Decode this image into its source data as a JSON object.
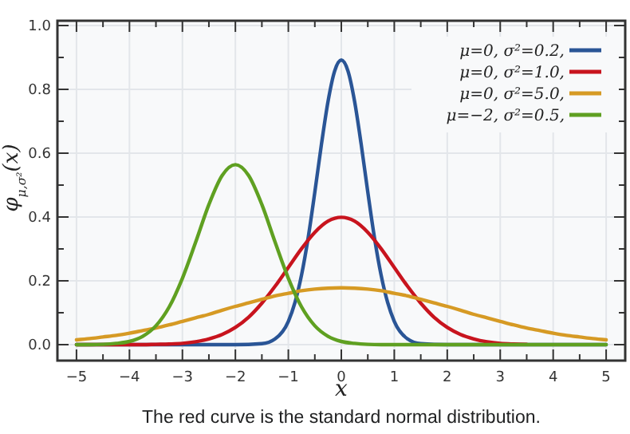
{
  "chart_data": {
    "type": "line",
    "xlabel": "x",
    "ylabel": "φ$_{μ,σ²}$(x)",
    "annotations": [
      "The red curve is the standard normal distribution."
    ],
    "x": [
      -5,
      -4.75,
      -4.5,
      -4.25,
      -4,
      -3.75,
      -3.5,
      -3.25,
      -3,
      -2.75,
      -2.5,
      -2.25,
      -2,
      -1.75,
      -1.5,
      -1.25,
      -1,
      -0.75,
      -0.5,
      -0.25,
      0,
      0.25,
      0.5,
      0.75,
      1,
      1.25,
      1.5,
      1.75,
      2,
      2.25,
      2.5,
      2.75,
      3,
      3.25,
      3.5,
      3.75,
      4,
      4.25,
      4.5,
      4.75,
      5
    ],
    "series": [
      {
        "name": "μ=0, σ²=0.2,",
        "color": "#2a5596",
        "x": [
          -5,
          -2,
          -1.5,
          -1.25,
          -1,
          -0.875,
          -0.75,
          -0.625,
          -0.5,
          -0.375,
          -0.25,
          -0.125,
          0,
          0.125,
          0.25,
          0.375,
          0.5,
          0.625,
          0.75,
          0.875,
          1,
          1.25,
          1.5,
          2,
          5
        ],
        "values": [
          0,
          0,
          0.003,
          0.018,
          0.073,
          0.132,
          0.219,
          0.336,
          0.478,
          0.628,
          0.763,
          0.858,
          0.892,
          0.858,
          0.763,
          0.628,
          0.478,
          0.336,
          0.219,
          0.132,
          0.073,
          0.018,
          0.003,
          0,
          0
        ]
      },
      {
        "name": "μ=0, σ²=1.0,",
        "color": "#c8141e",
        "values": [
          0,
          0,
          0,
          0,
          0,
          0,
          0.001,
          0.002,
          0.004,
          0.009,
          0.018,
          0.032,
          0.054,
          0.086,
          0.13,
          0.183,
          0.242,
          0.301,
          0.352,
          0.387,
          0.399,
          0.387,
          0.352,
          0.301,
          0.242,
          0.183,
          0.13,
          0.086,
          0.054,
          0.032,
          0.018,
          0.009,
          0.004,
          0.002,
          0.001,
          null,
          null,
          null,
          null,
          null,
          null
        ]
      },
      {
        "name": "μ=0, σ²=5.0,",
        "color": "#d69a24",
        "values": [
          0.015,
          0.019,
          0.024,
          0.029,
          0.036,
          0.044,
          0.052,
          0.062,
          0.073,
          0.084,
          0.095,
          0.108,
          0.12,
          0.131,
          0.142,
          0.153,
          0.161,
          0.169,
          0.174,
          0.177,
          0.178,
          0.177,
          0.174,
          0.169,
          0.161,
          0.153,
          0.142,
          0.131,
          0.12,
          0.108,
          0.095,
          0.084,
          0.073,
          0.062,
          0.052,
          0.044,
          0.036,
          0.029,
          0.024,
          0.019,
          0.015
        ]
      },
      {
        "name": "μ=−2, σ²=0.5,",
        "color": "#5fa021",
        "values": [
          0,
          0,
          0.001,
          0.004,
          0.01,
          0.026,
          0.059,
          0.118,
          0.208,
          0.321,
          0.439,
          0.53,
          0.564,
          0.53,
          0.439,
          0.321,
          0.208,
          0.118,
          0.059,
          0.026,
          0.01,
          0.004,
          0.001,
          0,
          0,
          0,
          0,
          0,
          0,
          0,
          0,
          0,
          0,
          0,
          0,
          0,
          0,
          0,
          0,
          0,
          0
        ]
      }
    ],
    "xlim": [
      -5.36,
      5.36
    ],
    "ylim": [
      -0.05,
      1.015
    ],
    "xticks": [
      {
        "value": -5,
        "label": "−5"
      },
      {
        "value": -4.5,
        "label": null
      },
      {
        "value": -4,
        "label": "−4"
      },
      {
        "value": -3.5,
        "label": null
      },
      {
        "value": -3,
        "label": "−3"
      },
      {
        "value": -2.5,
        "label": null
      },
      {
        "value": -2,
        "label": "−2"
      },
      {
        "value": -1.5,
        "label": null
      },
      {
        "value": -1,
        "label": "−1"
      },
      {
        "value": -0.5,
        "label": null
      },
      {
        "value": 0,
        "label": "0"
      },
      {
        "value": 0.5,
        "label": null
      },
      {
        "value": 1,
        "label": "1"
      },
      {
        "value": 1.5,
        "label": null
      },
      {
        "value": 2,
        "label": "2"
      },
      {
        "value": 2.5,
        "label": null
      },
      {
        "value": 3,
        "label": "3"
      },
      {
        "value": 3.5,
        "label": null
      },
      {
        "value": 4,
        "label": "4"
      },
      {
        "value": 4.5,
        "label": null
      },
      {
        "value": 5,
        "label": "5"
      }
    ],
    "yticks": [
      {
        "value": 0,
        "label": "0.0"
      },
      {
        "value": 0.1,
        "label": null
      },
      {
        "value": 0.2,
        "label": "0.2"
      },
      {
        "value": 0.3,
        "label": null
      },
      {
        "value": 0.4,
        "label": "0.4"
      },
      {
        "value": 0.5,
        "label": null
      },
      {
        "value": 0.6,
        "label": "0.6"
      },
      {
        "value": 0.7,
        "label": null
      },
      {
        "value": 0.8,
        "label": "0.8"
      },
      {
        "value": 0.9,
        "label": null
      },
      {
        "value": 1,
        "label": "1.0"
      }
    ],
    "grid": true,
    "legend": "top right",
    "marker": "none",
    "line_style": "solid"
  }
}
